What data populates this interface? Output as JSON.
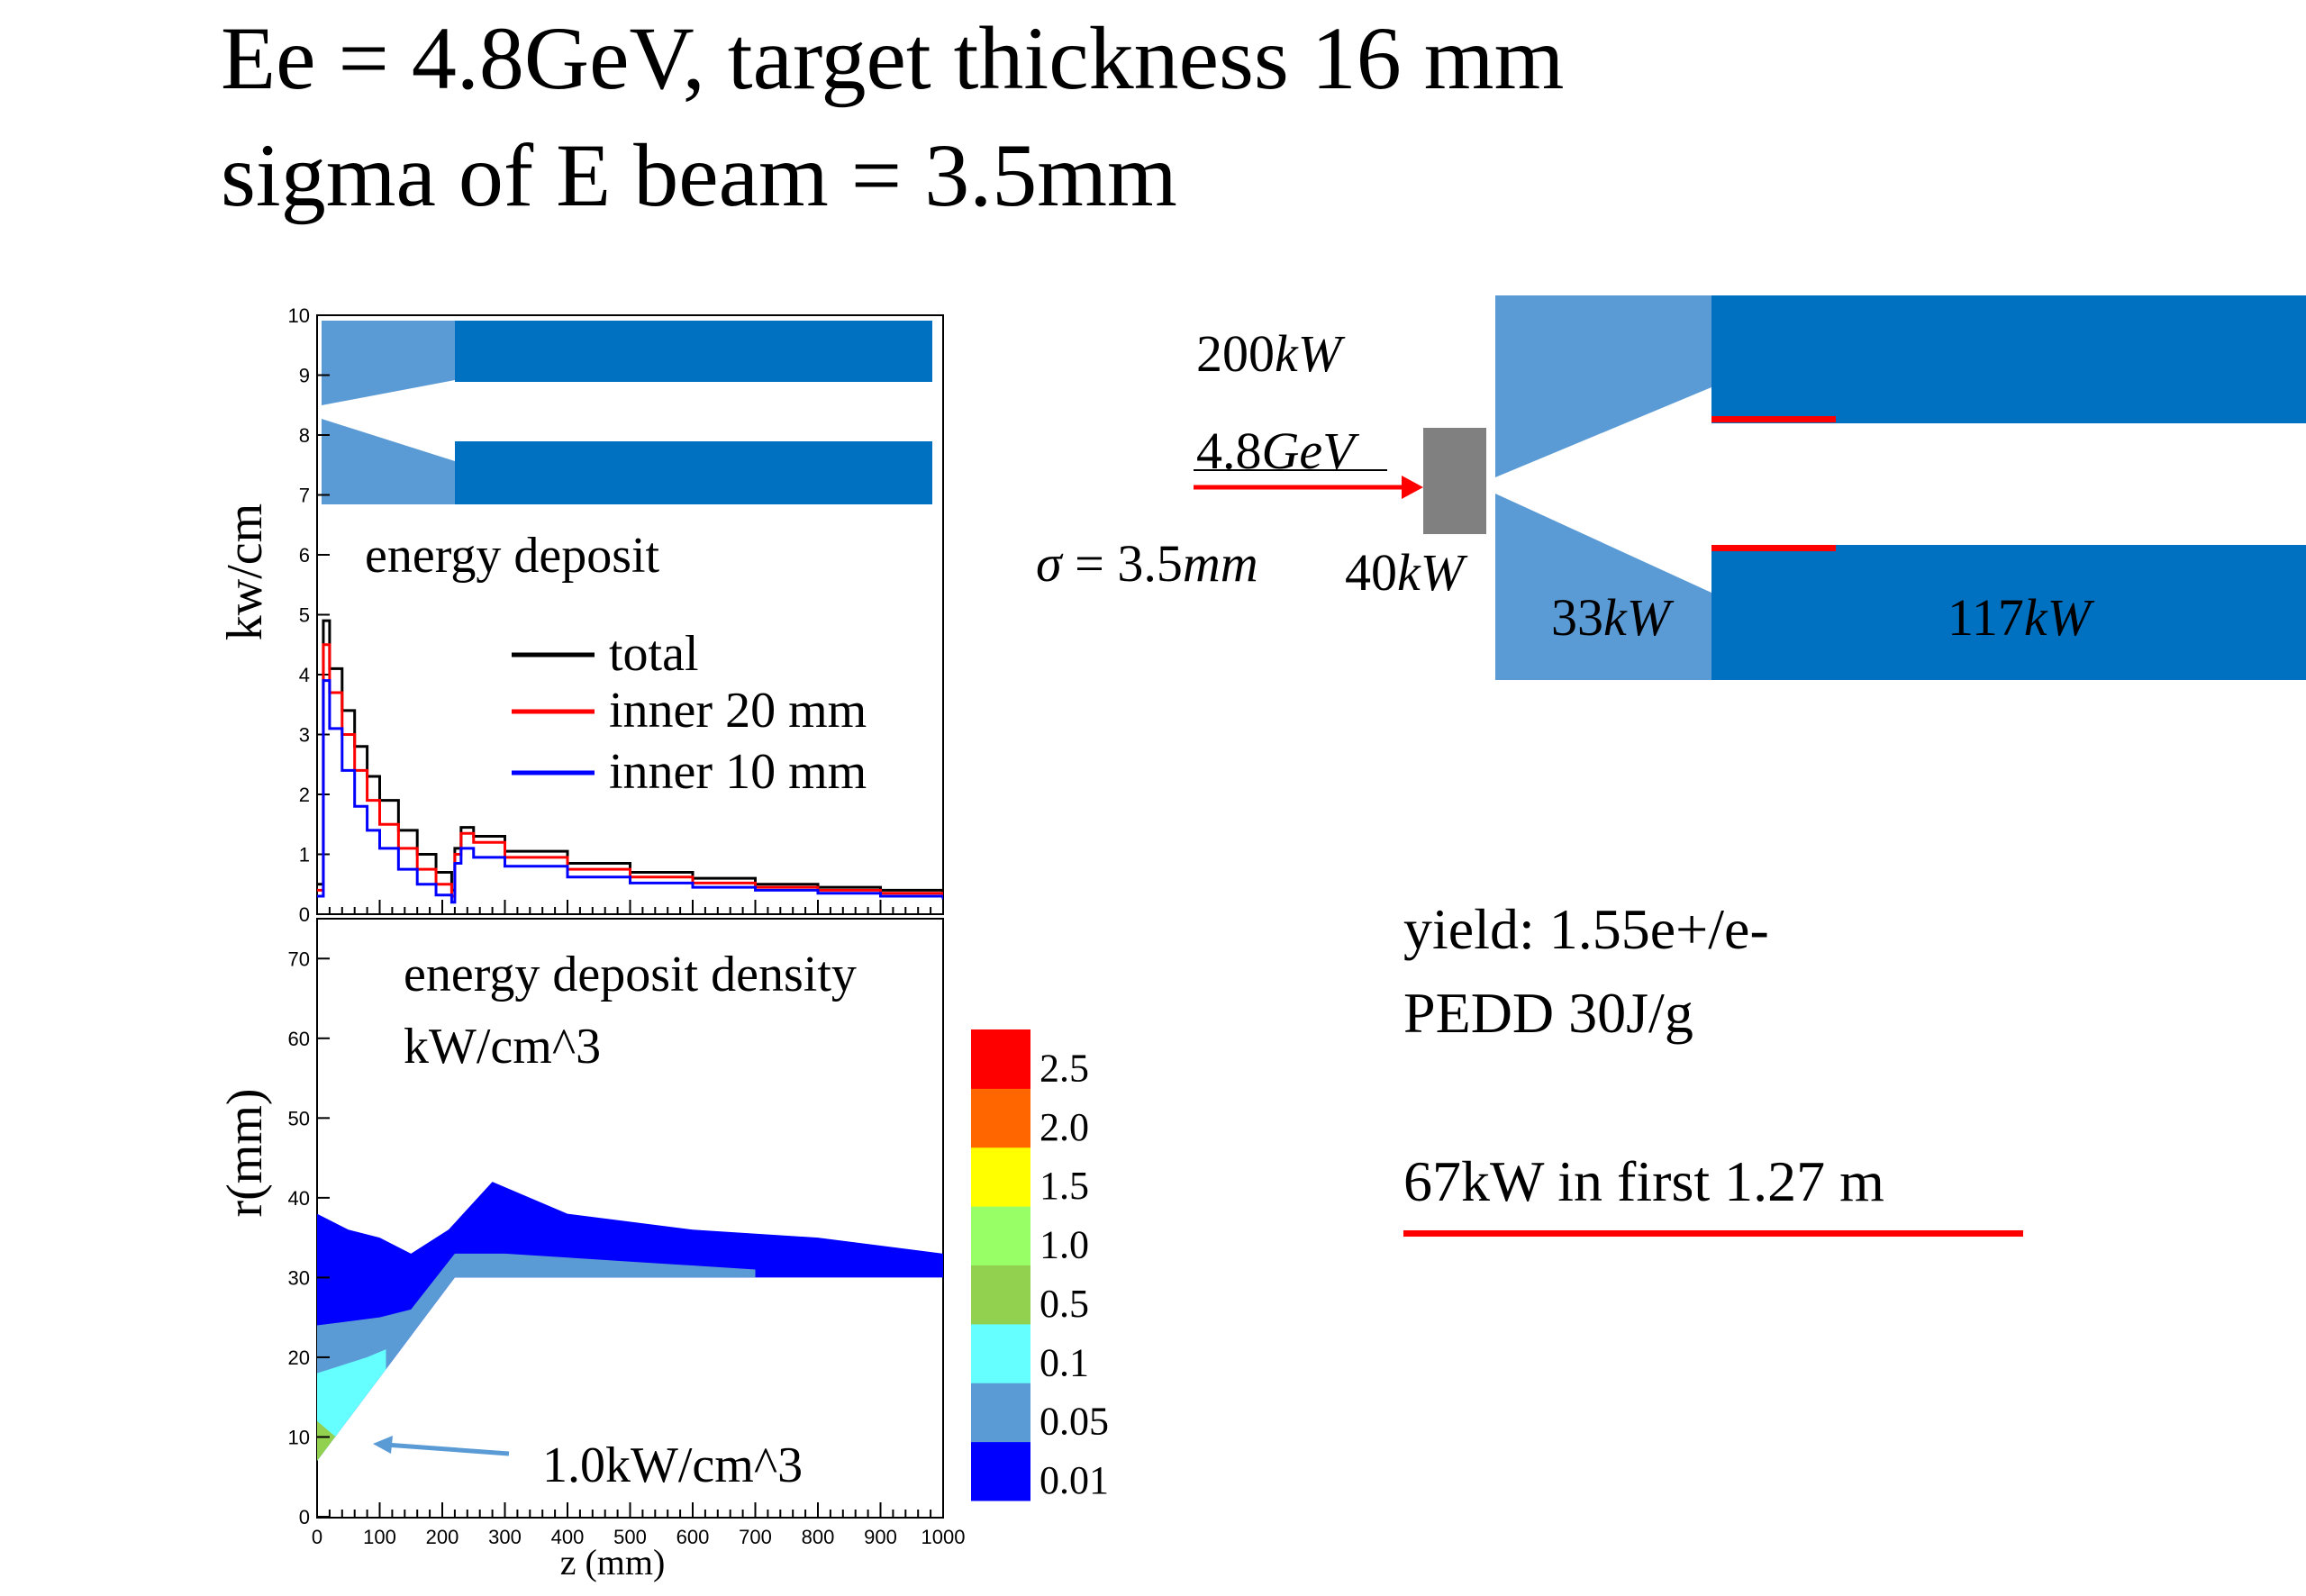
{
  "title": {
    "line1": "Ee = 4.8GeV, target thickness 16 mm",
    "line2": "sigma of E beam = 3.5mm"
  },
  "colors": {
    "dark_blue": "#0070C0",
    "light_blue": "#5B9BD5",
    "red": "#FF0000",
    "target_gray": "#808080",
    "legend_blue": "#0000FF"
  },
  "schematic": {
    "labels": {
      "power": "200",
      "power_unit": "kW",
      "energy": "4.8",
      "energy_unit": "GeV",
      "sigma_symbol": "σ",
      "sigma_eq": " = 3.5",
      "sigma_unit": "mm",
      "target_power": "40",
      "target_power_unit": "kW",
      "cone_power": "33",
      "cone_power_unit": "kW",
      "tube_power": "117",
      "tube_power_unit": "kW"
    }
  },
  "info": {
    "yield": "yield:  1.55e+/e-",
    "pedd": "PEDD 30J/g",
    "power_first": "67kW in first 1.27 m"
  },
  "chart_data": [
    {
      "type": "line",
      "name": "energy-deposit-chart",
      "title": "energy deposit",
      "ylabel": "kw/cm",
      "xlim": [
        0,
        1000
      ],
      "ylim": [
        0,
        10
      ],
      "yticks": [
        "0",
        "1",
        "2",
        "3",
        "4",
        "5",
        "6",
        "7",
        "8",
        "9",
        "10"
      ],
      "x": [
        0,
        10,
        20,
        40,
        60,
        80,
        100,
        130,
        160,
        190,
        215,
        220,
        230,
        250,
        300,
        400,
        500,
        600,
        700,
        800,
        900,
        1000
      ],
      "series": [
        {
          "name": "total",
          "color": "#000000",
          "values": [
            0.5,
            4.9,
            4.1,
            3.4,
            2.8,
            2.3,
            1.9,
            1.4,
            1.0,
            0.7,
            0.4,
            1.1,
            1.45,
            1.3,
            1.05,
            0.85,
            0.7,
            0.6,
            0.5,
            0.45,
            0.4,
            0.3
          ]
        },
        {
          "name": "inner 20 mm",
          "color": "#FF0000",
          "values": [
            0.4,
            4.5,
            3.7,
            3.0,
            2.4,
            1.9,
            1.5,
            1.1,
            0.75,
            0.5,
            0.3,
            1.0,
            1.35,
            1.2,
            0.95,
            0.75,
            0.62,
            0.52,
            0.45,
            0.4,
            0.35,
            0.3
          ]
        },
        {
          "name": "inner 10 mm",
          "color": "#0000FF",
          "values": [
            0.3,
            3.9,
            3.1,
            2.4,
            1.8,
            1.4,
            1.1,
            0.75,
            0.5,
            0.32,
            0.2,
            0.85,
            1.1,
            0.95,
            0.8,
            0.62,
            0.52,
            0.45,
            0.4,
            0.35,
            0.3,
            0.25
          ]
        }
      ]
    },
    {
      "type": "heatmap",
      "name": "energy-deposit-density-chart",
      "title_line1": "energy deposit density",
      "title_line2": "kW/cm^3",
      "xlabel": "z (mm)",
      "ylabel": "r(mm)",
      "xlim": [
        0,
        1000
      ],
      "ylim": [
        0,
        75
      ],
      "xticks": [
        "0",
        "100",
        "200",
        "300",
        "400",
        "500",
        "600",
        "700",
        "800",
        "900",
        "1000"
      ],
      "yticks": [
        "0",
        "10",
        "20",
        "30",
        "40",
        "50",
        "60",
        "70"
      ],
      "annotation": "1.0kW/cm^3",
      "colorbar": [
        {
          "label": "0.01",
          "color": "#0000FF"
        },
        {
          "label": "0.05",
          "color": "#5B9BD5"
        },
        {
          "label": "0.1",
          "color": "#66FFFF"
        },
        {
          "label": "0.5",
          "color": "#92D050"
        },
        {
          "label": "1.0",
          "color": "#99FF66"
        },
        {
          "label": "1.5",
          "color": "#FFFF00"
        },
        {
          "label": "2.0",
          "color": "#FF6600"
        },
        {
          "label": "2.5",
          "color": "#FF0000"
        }
      ],
      "regions": [
        {
          "level": "0.01",
          "upper_r": [
            [
              0,
              38
            ],
            [
              50,
              36
            ],
            [
              100,
              35
            ],
            [
              150,
              33
            ],
            [
              210,
              36
            ],
            [
              280,
              42
            ],
            [
              400,
              38
            ],
            [
              600,
              36
            ],
            [
              800,
              35
            ],
            [
              1000,
              33
            ]
          ]
        },
        {
          "level": "0.05",
          "upper_r": [
            [
              0,
              24
            ],
            [
              100,
              25
            ],
            [
              150,
              26
            ],
            [
              220,
              33
            ],
            [
              300,
              33
            ],
            [
              500,
              32
            ],
            [
              700,
              31
            ]
          ]
        },
        {
          "level": "0.1",
          "upper_r": [
            [
              0,
              18
            ],
            [
              80,
              20
            ],
            [
              110,
              21
            ]
          ]
        },
        {
          "level": "0.5",
          "upper_r": [
            [
              0,
              12
            ],
            [
              30,
              10
            ]
          ]
        }
      ]
    }
  ]
}
